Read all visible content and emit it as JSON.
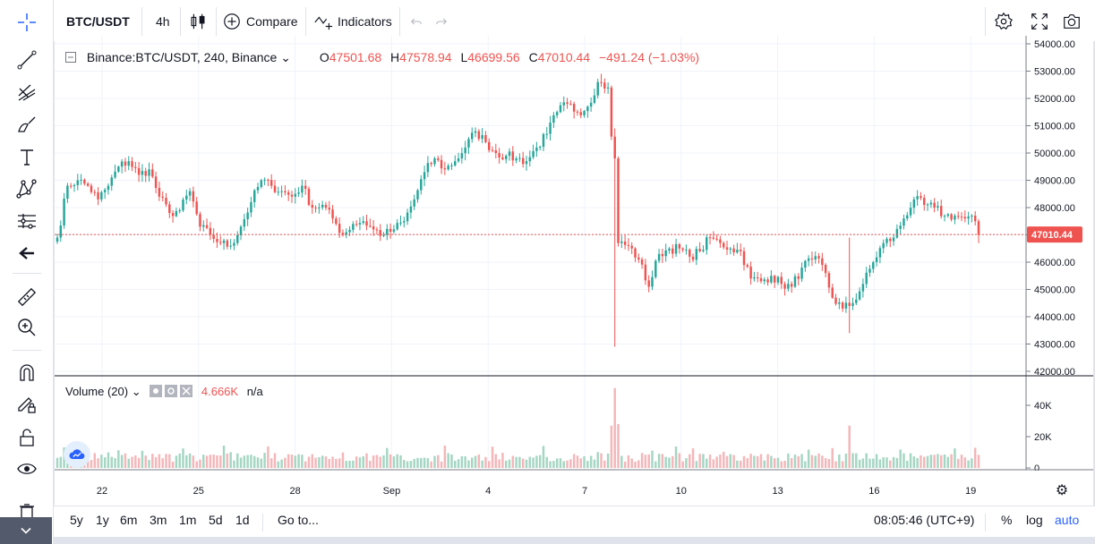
{
  "toolbar": {
    "symbol": "BTC/USDT",
    "interval": "4h",
    "compare_label": "Compare",
    "indicators_label": "Indicators"
  },
  "legend": {
    "title": "Binance:BTC/USDT, 240, Binance",
    "o_label": "O",
    "o_value": "47501.68",
    "h_label": "H",
    "h_value": "47578.94",
    "l_label": "L",
    "l_value": "46699.56",
    "c_label": "C",
    "c_value": "47010.44",
    "change": "−491.24 (−1.03%)",
    "volume_label": "Volume (20)",
    "volume_value": "4.666K",
    "volume_na": "n/a"
  },
  "price_axis": {
    "ticks": [
      "54000.00",
      "53000.00",
      "52000.00",
      "51000.00",
      "50000.00",
      "49000.00",
      "48000.00",
      "47000.00",
      "46000.00",
      "45000.00",
      "44000.00",
      "43000.00",
      "42000.00"
    ],
    "last_price": "47010.44"
  },
  "volume_axis": {
    "ticks": [
      "40K",
      "20K",
      "0"
    ]
  },
  "time_axis": {
    "ticks": [
      "22",
      "25",
      "28",
      "Sep",
      "4",
      "7",
      "10",
      "13",
      "16",
      "19"
    ]
  },
  "bottom": {
    "ranges": [
      "5y",
      "1y",
      "6m",
      "3m",
      "1m",
      "5d",
      "1d"
    ],
    "goto": "Go to...",
    "clock": "08:05:46 (UTC+9)",
    "percent": "%",
    "log": "log",
    "auto": "auto"
  },
  "colors": {
    "up": "#26a69a",
    "down": "#ef5350",
    "up_vol": "#a5d6c3",
    "down_vol": "#f4b6b9",
    "accent": "#2962ff"
  },
  "icons": {
    "left": [
      "crosshair-icon",
      "trend-line-icon",
      "pitchfork-icon",
      "brush-icon",
      "text-icon",
      "pattern-icon",
      "prediction-icon",
      "back-arrow-icon",
      "ruler-icon",
      "zoom-in-icon",
      "magnet-icon",
      "lock-drawing-icon",
      "lock-icon",
      "eye-icon",
      "trash-icon"
    ],
    "top_right": [
      "settings-icon",
      "fullscreen-icon",
      "camera-icon"
    ]
  },
  "chart_data": {
    "type": "candlestick",
    "price_range": [
      42000,
      54000
    ],
    "volume_range": [
      0,
      45000
    ],
    "x_ticks": [
      "22",
      "25",
      "28",
      "Sep",
      "4",
      "7",
      "10",
      "13",
      "16",
      "19"
    ],
    "last_close": 47010.44,
    "anchors": [
      [
        0,
        46900
      ],
      [
        3,
        48800
      ],
      [
        6,
        49000
      ],
      [
        9,
        48800
      ],
      [
        12,
        48300
      ],
      [
        15,
        48800
      ],
      [
        18,
        49500
      ],
      [
        21,
        49700
      ],
      [
        24,
        49200
      ],
      [
        27,
        49400
      ],
      [
        30,
        48400
      ],
      [
        33,
        47800
      ],
      [
        36,
        47900
      ],
      [
        39,
        48600
      ],
      [
        42,
        47300
      ],
      [
        45,
        47000
      ],
      [
        48,
        46700
      ],
      [
        51,
        46600
      ],
      [
        54,
        47300
      ],
      [
        57,
        48200
      ],
      [
        60,
        49000
      ],
      [
        63,
        48800
      ],
      [
        66,
        48600
      ],
      [
        69,
        48400
      ],
      [
        72,
        48800
      ],
      [
        75,
        48000
      ],
      [
        78,
        48100
      ],
      [
        81,
        47600
      ],
      [
        84,
        47000
      ],
      [
        87,
        47400
      ],
      [
        90,
        47500
      ],
      [
        93,
        47200
      ],
      [
        96,
        47000
      ],
      [
        99,
        47200
      ],
      [
        102,
        47500
      ],
      [
        105,
        48300
      ],
      [
        108,
        49300
      ],
      [
        111,
        49800
      ],
      [
        114,
        49400
      ],
      [
        117,
        49700
      ],
      [
        120,
        50200
      ],
      [
        123,
        50800
      ],
      [
        126,
        50400
      ],
      [
        129,
        50000
      ],
      [
        132,
        49900
      ],
      [
        135,
        49800
      ],
      [
        138,
        49700
      ],
      [
        141,
        50200
      ],
      [
        144,
        50700
      ],
      [
        147,
        51500
      ],
      [
        150,
        51800
      ],
      [
        153,
        51500
      ],
      [
        156,
        51700
      ],
      [
        159,
        52600
      ],
      [
        162,
        52400
      ],
      [
        163,
        50600
      ],
      [
        164,
        49800
      ],
      [
        165,
        46700
      ],
      [
        168,
        46600
      ],
      [
        171,
        46100
      ],
      [
        174,
        45100
      ],
      [
        177,
        46300
      ],
      [
        180,
        46500
      ],
      [
        183,
        46500
      ],
      [
        186,
        46200
      ],
      [
        189,
        46400
      ],
      [
        192,
        46900
      ],
      [
        195,
        46700
      ],
      [
        198,
        46500
      ],
      [
        201,
        46400
      ],
      [
        204,
        45400
      ],
      [
        207,
        45300
      ],
      [
        210,
        45500
      ],
      [
        213,
        45200
      ],
      [
        216,
        45100
      ],
      [
        219,
        45800
      ],
      [
        222,
        46100
      ],
      [
        225,
        45900
      ],
      [
        228,
        44700
      ],
      [
        231,
        44300
      ],
      [
        234,
        44500
      ],
      [
        237,
        45200
      ],
      [
        240,
        46000
      ],
      [
        243,
        46700
      ],
      [
        246,
        46900
      ],
      [
        249,
        47600
      ],
      [
        252,
        48300
      ],
      [
        255,
        48100
      ],
      [
        258,
        48000
      ],
      [
        261,
        47700
      ],
      [
        264,
        47700
      ],
      [
        267,
        47600
      ],
      [
        270,
        47501.68
      ],
      [
        271,
        47010.44
      ]
    ],
    "volume_spikes": [
      [
        163,
        27000
      ],
      [
        164,
        51000
      ],
      [
        165,
        28000
      ],
      [
        233,
        27000
      ]
    ]
  }
}
